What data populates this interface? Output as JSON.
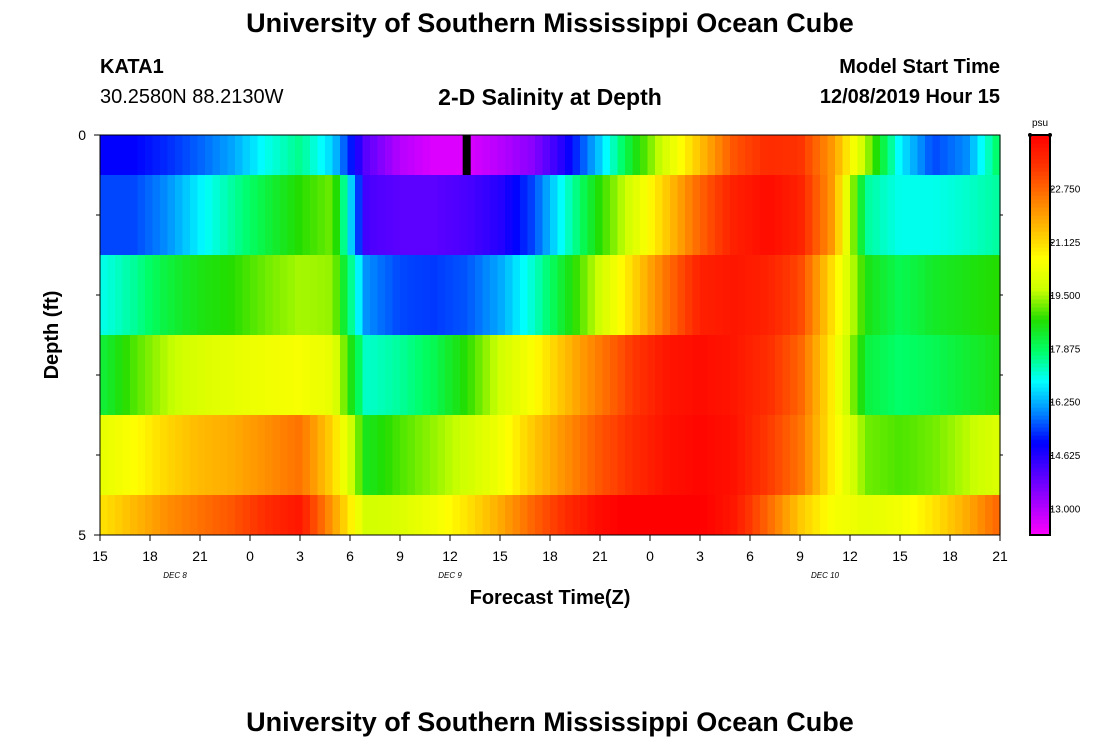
{
  "header": {
    "title": "University of Southern Mississippi Ocean Cube",
    "station": "KATA1",
    "coords": "30.2580N 88.2130W",
    "subtitle": "2-D Salinity at Depth",
    "start_label": "Model Start Time",
    "start_value": "12/08/2019 Hour 15"
  },
  "footer": {
    "title": "University of Southern Mississippi Ocean Cube"
  },
  "chart_data": {
    "type": "heatmap",
    "xlabel": "Forecast Time(Z)",
    "ylabel": "Depth (ft)",
    "x_range_hours": [
      0,
      54
    ],
    "x_ticks": [
      "15",
      "18",
      "21",
      "0",
      "3",
      "6",
      "9",
      "12",
      "15",
      "18",
      "21",
      "0",
      "3",
      "6",
      "9",
      "12",
      "15",
      "18",
      "21"
    ],
    "day_labels": [
      {
        "label": "DEC 8",
        "hour": 4.5
      },
      {
        "label": "DEC 9",
        "hour": 21
      },
      {
        "label": "DEC 10",
        "hour": 43.5
      }
    ],
    "y_ticks": [
      {
        "value": 0,
        "label": "0"
      },
      {
        "value": 5,
        "label": "5"
      }
    ],
    "y_minor_ticks": [
      1,
      2,
      3,
      4
    ],
    "ylim": [
      0,
      5
    ],
    "depth_bands": [
      0,
      0.5,
      1.5,
      2.5,
      3.5,
      4.5,
      5
    ],
    "colorbar": {
      "unit": "psu",
      "vmin": 12.2,
      "vmax": 24.4,
      "tick_values": [
        13.0,
        14.625,
        16.25,
        17.875,
        19.5,
        21.125,
        22.75
      ],
      "tick_labels": [
        "13.000",
        "14.625",
        "16.250",
        "17.875",
        "19.500",
        "21.125",
        "22.750"
      ],
      "colors": [
        "#ff00ff",
        "#aa00ff",
        "#5500ff",
        "#0000ff",
        "#0088ff",
        "#00ffff",
        "#00ff66",
        "#22dd00",
        "#ccff00",
        "#ffff00",
        "#ffbb00",
        "#ff7700",
        "#ff3300",
        "#ff0000"
      ]
    },
    "hours": [
      0,
      2,
      4,
      6,
      8,
      10,
      12,
      14,
      16,
      18,
      20,
      22,
      24,
      26,
      28,
      30,
      32,
      34,
      36,
      38,
      40,
      42,
      44,
      46,
      48,
      50,
      52,
      54
    ],
    "rows": [
      {
        "name": "0-0.5 ft",
        "values": [
          15.0,
          15.0,
          15.3,
          15.7,
          16.2,
          17.0,
          17.6,
          16.5,
          14.0,
          13.0,
          12.6,
          12.6,
          13.0,
          13.5,
          14.8,
          16.5,
          18.5,
          20.0,
          21.5,
          23.0,
          23.6,
          23.5,
          22.0,
          19.5,
          16.8,
          15.5,
          16.0,
          18.0
        ]
      },
      {
        "name": "0.5-1.5 ft",
        "values": [
          15.5,
          15.5,
          16.0,
          16.8,
          17.5,
          18.2,
          18.8,
          19.2,
          14.2,
          14.0,
          14.0,
          14.2,
          14.6,
          15.5,
          17.2,
          18.8,
          20.0,
          21.4,
          22.8,
          23.8,
          24.2,
          23.8,
          22.0,
          17.5,
          17.0,
          17.0,
          17.2,
          17.5
        ]
      },
      {
        "name": "1.5-2.5 ft",
        "values": [
          17.0,
          17.5,
          18.2,
          18.6,
          18.8,
          19.2,
          19.5,
          19.4,
          16.0,
          15.5,
          15.4,
          15.6,
          16.2,
          17.2,
          18.5,
          19.8,
          21.2,
          22.6,
          23.8,
          24.0,
          23.8,
          23.2,
          21.0,
          18.6,
          18.0,
          18.4,
          18.6,
          18.8
        ]
      },
      {
        "name": "2.5-3.5 ft",
        "values": [
          18.2,
          19.0,
          19.6,
          20.0,
          20.2,
          20.4,
          20.5,
          20.2,
          17.2,
          17.5,
          18.0,
          18.8,
          19.8,
          20.6,
          21.6,
          22.5,
          23.4,
          24.0,
          24.2,
          24.0,
          23.6,
          22.8,
          20.8,
          18.2,
          17.8,
          18.0,
          18.3,
          18.6
        ]
      },
      {
        "name": "3.5-4.5 ft",
        "values": [
          20.2,
          20.6,
          21.2,
          21.6,
          21.8,
          22.2,
          22.6,
          21.2,
          18.5,
          19.0,
          19.4,
          19.8,
          20.4,
          21.4,
          22.2,
          23.0,
          23.6,
          24.1,
          24.3,
          24.1,
          23.4,
          22.6,
          20.8,
          19.2,
          19.0,
          19.2,
          19.6,
          20.0
        ]
      },
      {
        "name": "4.5-5 ft",
        "values": [
          21.0,
          21.6,
          22.2,
          22.6,
          23.0,
          23.6,
          24.0,
          22.0,
          19.8,
          20.0,
          20.4,
          21.0,
          21.8,
          22.8,
          23.6,
          24.2,
          24.5,
          24.6,
          24.4,
          24.0,
          22.8,
          21.4,
          20.5,
          20.2,
          20.4,
          21.0,
          21.8,
          22.8
        ]
      }
    ],
    "marker": {
      "hour": 22,
      "depth_from": 0,
      "depth_to": 0.5,
      "color": "#000000"
    }
  }
}
